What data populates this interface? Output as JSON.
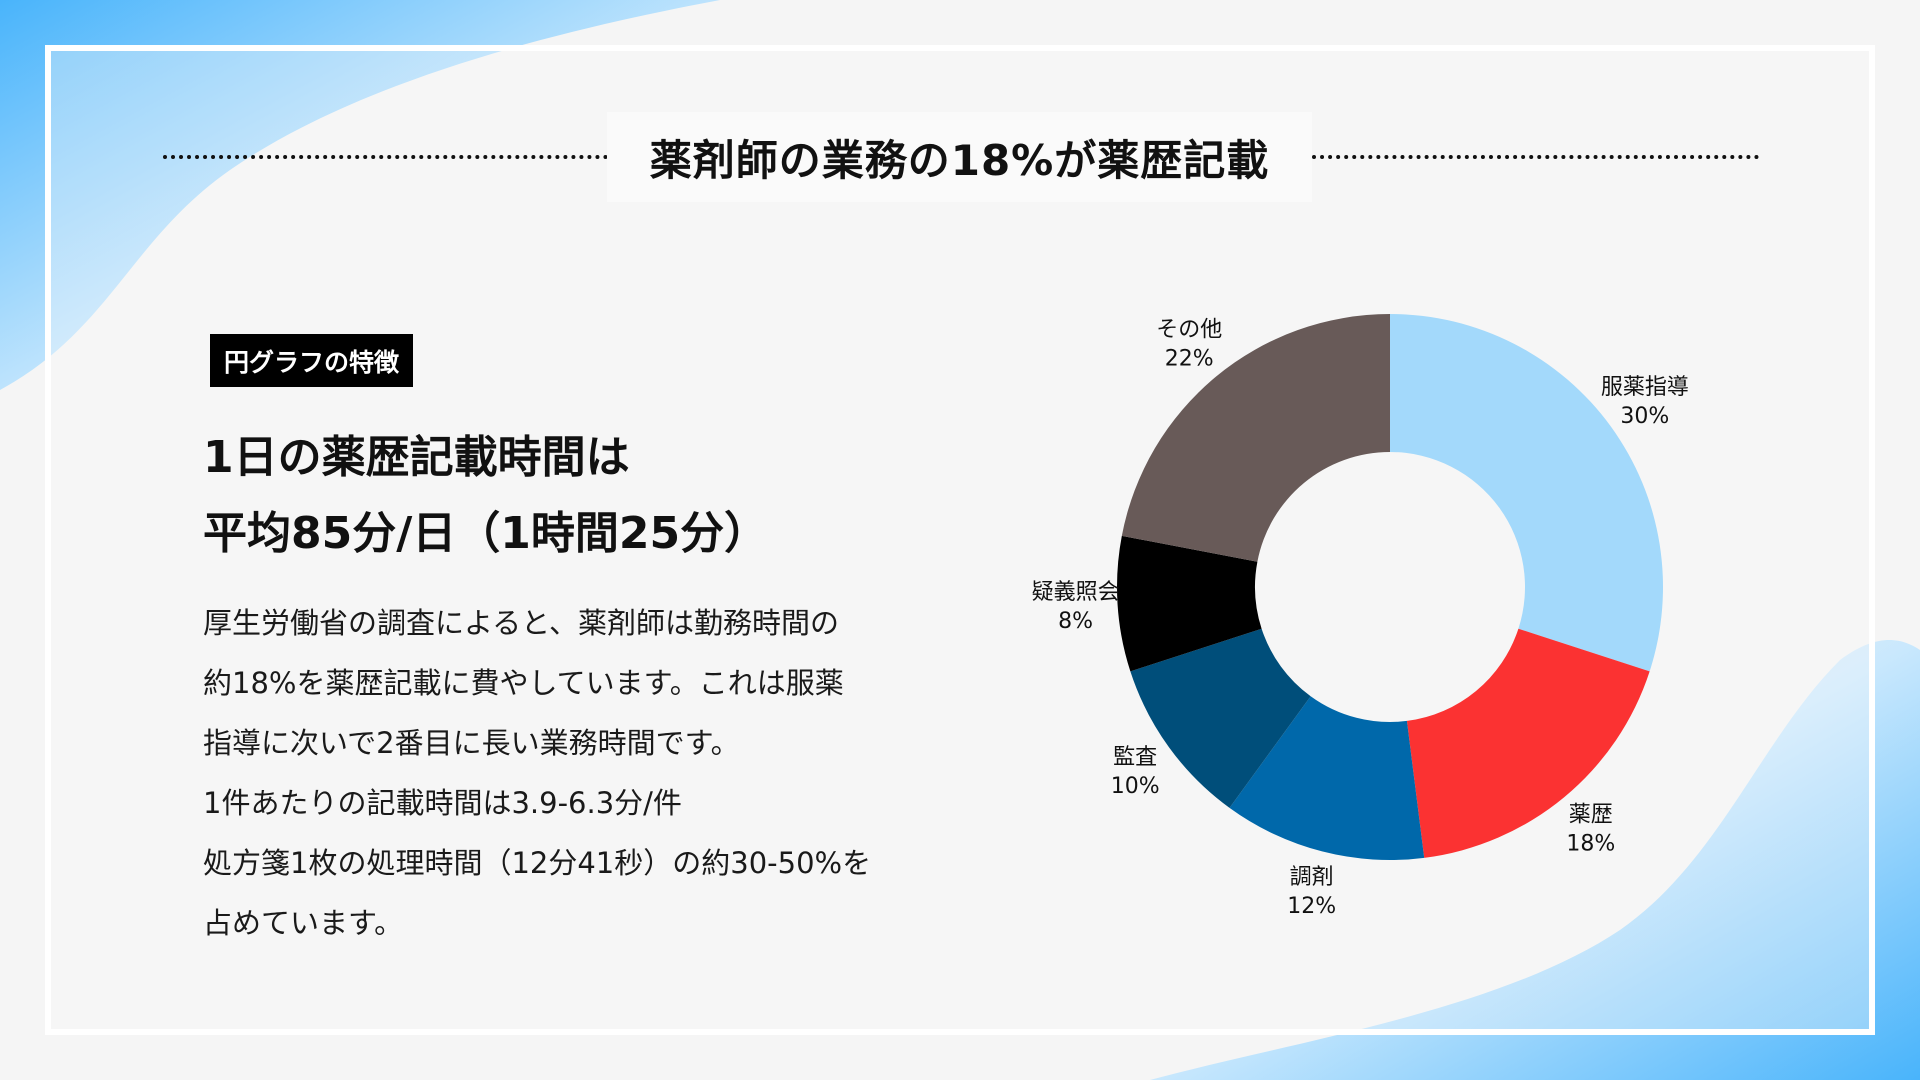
{
  "title": "薬剤師の業務の18%が薬歴記載",
  "feature_badge": "円グラフの特徴",
  "headline": {
    "line1": "1日の薬歴記載時間は",
    "line2": "平均85分/日（1時間25分）"
  },
  "body_lines": [
    "厚生労働省の調査によると、薬剤師は勤務時間の",
    "約18%を薬歴記載に費やしています。これは服薬",
    "指導に次いで2番目に長い業務時間です。",
    "1件あたりの記載時間は3.9-6.3分/件",
    "処方箋1枚の処理時間（12分41秒）の約30-50%を",
    "占めています。"
  ],
  "colors": {
    "background_accent": "#4db8ff",
    "badge_bg": "#000000"
  },
  "chart_data": {
    "type": "pie",
    "donut": true,
    "unit": "%",
    "legend": "none",
    "slices": [
      {
        "label": "服薬指導",
        "value": 30,
        "color": "#a3d9fb"
      },
      {
        "label": "薬歴",
        "value": 18,
        "color": "#fb3232"
      },
      {
        "label": "調剤",
        "value": 12,
        "color": "#0068aa"
      },
      {
        "label": "監査",
        "value": 10,
        "color": "#004e7a"
      },
      {
        "label": "疑義照会",
        "value": 8,
        "color": "#000000"
      },
      {
        "label": "その他",
        "value": 22,
        "color": "#685a58"
      }
    ]
  }
}
